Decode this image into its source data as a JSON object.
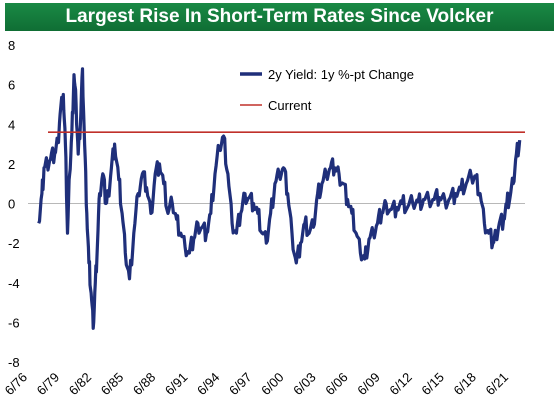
{
  "chart_data": {
    "type": "line",
    "title": "Largest Rise In Short-Term Rates Since Volcker",
    "ylim": [
      -8,
      8
    ],
    "yticks": [
      "8",
      "6",
      "4",
      "2",
      "0",
      "-2",
      "-4",
      "-6",
      "-8"
    ],
    "xticks": [
      "6/76",
      "6/79",
      "6/82",
      "6/85",
      "6/88",
      "6/91",
      "6/94",
      "6/97",
      "6/00",
      "6/03",
      "6/06",
      "6/09",
      "6/12",
      "6/15",
      "6/18",
      "6/21"
    ],
    "series": [
      {
        "name": "2y Yield: 1y %-pt Change",
        "color": "#1f2f7a",
        "x": [
          1977.5,
          1977.8,
          1978.0,
          1978.3,
          1978.6,
          1979.0,
          1979.3,
          1979.5,
          1979.8,
          1980.0,
          1980.2,
          1980.4,
          1980.6,
          1980.8,
          1981.0,
          1981.2,
          1981.4,
          1981.6,
          1981.8,
          1982.0,
          1982.2,
          1982.4,
          1982.6,
          1982.8,
          1983.0,
          1983.2,
          1983.5,
          1983.8,
          1984.0,
          1984.3,
          1984.6,
          1985.0,
          1985.3,
          1985.6,
          1986.0,
          1986.4,
          1986.8,
          1987.2,
          1987.6,
          1988.0,
          1988.4,
          1988.8,
          1989.2,
          1989.6,
          1990.0,
          1990.4,
          1990.8,
          1991.2,
          1991.6,
          1992.0,
          1992.4,
          1992.8,
          1993.2,
          1993.6,
          1994.0,
          1994.4,
          1994.8,
          1995.2,
          1995.6,
          1996.0,
          1996.4,
          1996.8,
          1997.2,
          1997.6,
          1998.0,
          1998.4,
          1998.8,
          1999.2,
          1999.6,
          2000.0,
          2000.4,
          2000.8,
          2001.2,
          2001.6,
          2002.0,
          2002.4,
          2002.8,
          2003.2,
          2003.6,
          2004.0,
          2004.4,
          2004.8,
          2005.2,
          2005.6,
          2006.0,
          2006.4,
          2006.8,
          2007.2,
          2007.6,
          2008.0,
          2008.4,
          2008.8,
          2009.2,
          2009.6,
          2010.0,
          2010.5,
          2011.0,
          2011.5,
          2012.0,
          2012.5,
          2013.0,
          2013.5,
          2014.0,
          2014.5,
          2015.0,
          2015.5,
          2016.0,
          2016.5,
          2017.0,
          2017.5,
          2018.0,
          2018.4,
          2018.8,
          2019.2,
          2019.6,
          2020.0,
          2020.3,
          2020.6,
          2021.0,
          2021.3,
          2021.6,
          2021.9,
          2022.2,
          2022.5
        ],
        "values": [
          -1.0,
          0.5,
          1.8,
          2.0,
          2.2,
          2.5,
          3.2,
          4.5,
          5.5,
          3.0,
          -1.5,
          1.5,
          3.5,
          6.5,
          5.0,
          2.5,
          4.0,
          6.8,
          3.0,
          -0.5,
          -3.0,
          -4.5,
          -6.3,
          -4.0,
          -2.0,
          0.5,
          1.5,
          0.0,
          0.5,
          1.8,
          3.0,
          1.2,
          -0.5,
          -2.5,
          -3.8,
          -1.5,
          0.5,
          1.5,
          0.8,
          -0.5,
          1.5,
          2.0,
          1.0,
          -0.5,
          0.0,
          -0.8,
          -1.5,
          -2.2,
          -2.5,
          -1.8,
          -1.0,
          -1.2,
          -1.5,
          -0.5,
          1.5,
          2.8,
          3.4,
          1.5,
          -1.0,
          -1.5,
          -0.5,
          0.5,
          0.3,
          0.0,
          -0.5,
          -1.5,
          -2.0,
          -0.5,
          1.0,
          1.5,
          1.8,
          0.5,
          -1.5,
          -3.0,
          -2.0,
          -1.0,
          -1.5,
          -1.2,
          0.5,
          1.0,
          1.5,
          1.8,
          1.8,
          1.5,
          1.0,
          0.2,
          -0.5,
          -1.5,
          -2.5,
          -2.8,
          -1.8,
          -1.5,
          -1.0,
          -0.5,
          0.0,
          -0.3,
          -0.2,
          0.0,
          -0.2,
          0.0,
          0.1,
          0.2,
          0.2,
          0.2,
          0.3,
          0.2,
          0.3,
          0.5,
          0.7,
          1.0,
          1.3,
          1.3,
          0.5,
          -1.0,
          -1.5,
          -2.0,
          -1.5,
          -1.0,
          -0.8,
          0.0,
          0.3,
          1.0,
          2.5,
          3.2
        ]
      },
      {
        "name": "Current",
        "color": "#c0302a",
        "values": [
          3.6
        ]
      }
    ],
    "grid": false,
    "legend": "top-right"
  }
}
